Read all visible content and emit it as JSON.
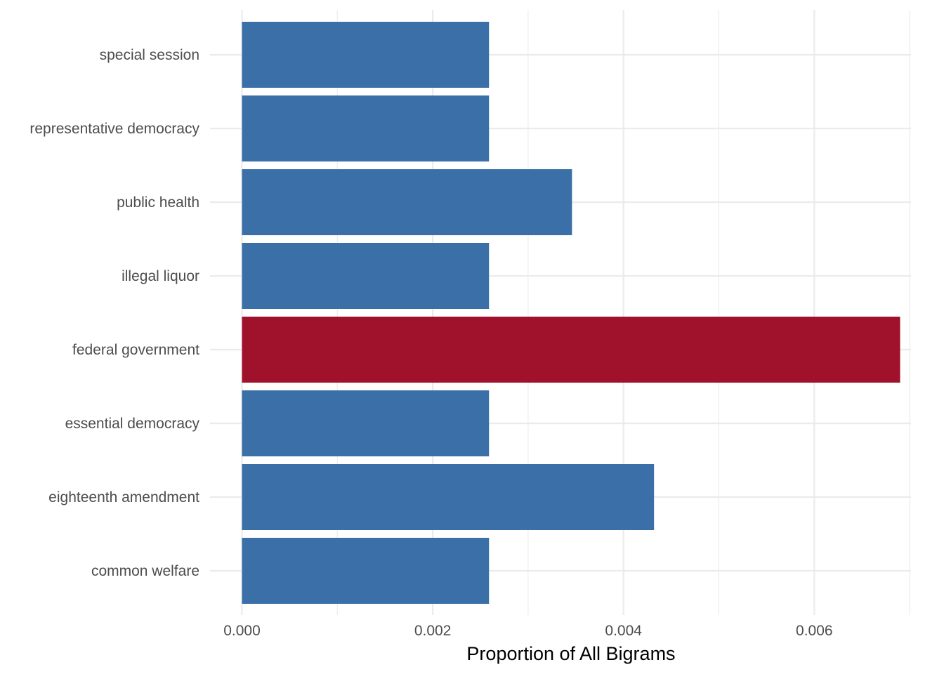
{
  "chart_data": {
    "type": "bar",
    "orientation": "horizontal",
    "categories": [
      "special session",
      "representative democracy",
      "public health",
      "illegal liquor",
      "federal government",
      "essential democracy",
      "eighteenth amendment",
      "common welfare"
    ],
    "values": [
      0.00259,
      0.00259,
      0.00346,
      0.00259,
      0.0069,
      0.00259,
      0.00432,
      0.00259
    ],
    "highlight": "federal government",
    "xlabel": "Proportion of All Bigrams",
    "ylabel": "",
    "xlim": [
      0,
      0.007
    ],
    "xticks": [
      0,
      0.002,
      0.004,
      0.006
    ],
    "xtick_labels": [
      "0.000",
      "0.002",
      "0.004",
      "0.006"
    ],
    "grid": true,
    "colors": {
      "default_bar": "#3a6fa7",
      "highlight_bar": "#a0112b"
    }
  }
}
